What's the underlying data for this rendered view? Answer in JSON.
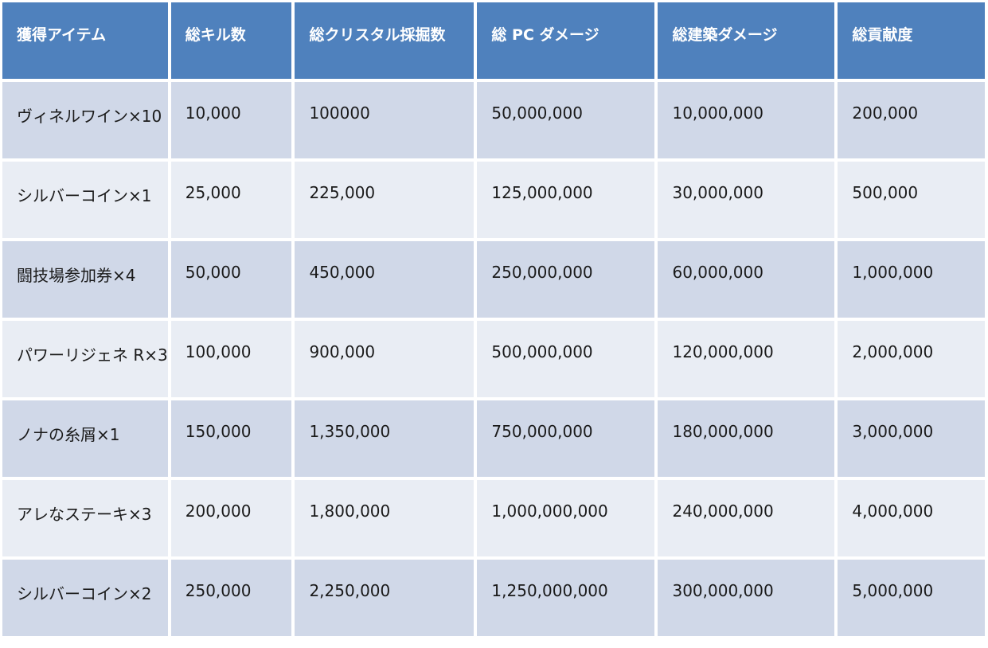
{
  "table": {
    "headers": [
      "獲得アイテム",
      "総キル数",
      "総クリスタル採掘数",
      "総 PC ダメージ",
      "総建築ダメージ",
      "総貢献度"
    ],
    "rows": [
      [
        "ヴィネルワイン×10",
        "10,000",
        "100000",
        "50,000,000",
        "10,000,000",
        "200,000"
      ],
      [
        "シルバーコイン×1",
        "25,000",
        "225,000",
        "125,000,000",
        "30,000,000",
        "500,000"
      ],
      [
        "闘技場参加券×4",
        "50,000",
        "450,000",
        "250,000,000",
        "60,000,000",
        "1,000,000"
      ],
      [
        "パワーリジェネ R×3",
        "100,000",
        "900,000",
        "500,000,000",
        "120,000,000",
        "2,000,000"
      ],
      [
        "ノナの糸屑×1",
        "150,000",
        "1,350,000",
        "750,000,000",
        "180,000,000",
        "3,000,000"
      ],
      [
        "アレなステーキ×3",
        "200,000",
        "1,800,000",
        "1,000,000,000",
        "240,000,000",
        "4,000,000"
      ],
      [
        "シルバーコイン×2",
        "250,000",
        "2,250,000",
        "1,250,000,000",
        "300,000,000",
        "5,000,000"
      ]
    ]
  },
  "colors": {
    "header_bg": "#4f81bd",
    "header_text": "#ffffff",
    "row_band_dark": "#d0d8e8",
    "row_band_light": "#e9edf4"
  }
}
